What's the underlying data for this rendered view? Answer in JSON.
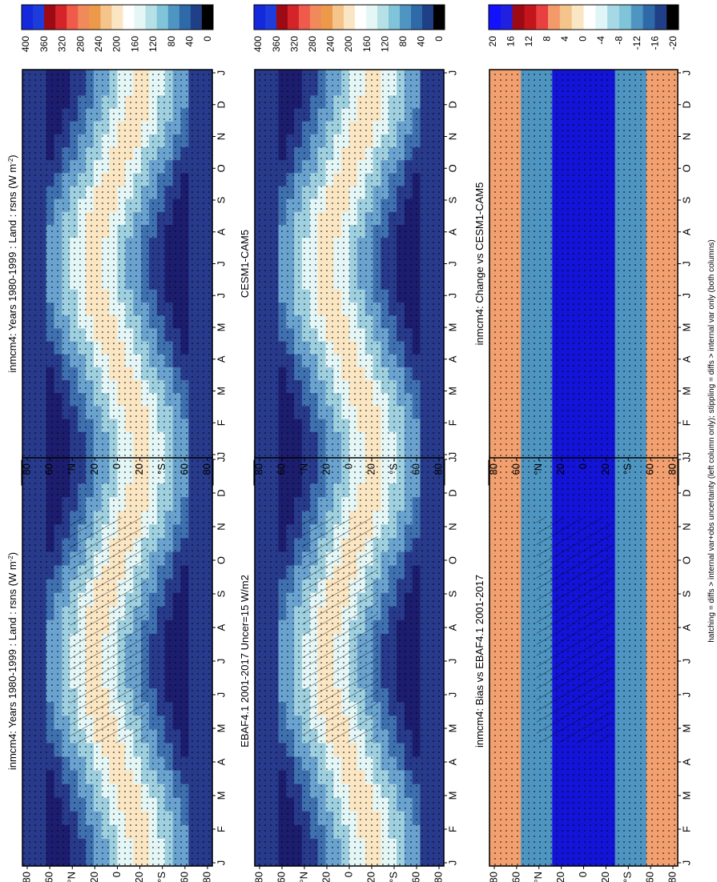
{
  "footnote": "hatching = diffs > internal var+obs uncertainty (left column only); stippling = diffs > internal var only (both columns)",
  "colors": {
    "frame": "#000000"
  },
  "chart_data": [
    {
      "type": "heatmap",
      "title": "inmcm4: Years 1980-1999 : Land : rsns (W m",
      "title_superscript": "-2",
      "title_suffix": ")",
      "x": [
        "J",
        "F",
        "M",
        "A",
        "M",
        "J",
        "J",
        "A",
        "S",
        "O",
        "N",
        "D",
        "J"
      ],
      "y_ticks": [
        "80",
        "60",
        "°N",
        "20",
        "0",
        "20",
        "°S",
        "60",
        "80"
      ],
      "colorbar_ticks": [
        "400",
        "360",
        "320",
        "280",
        "240",
        "200",
        "160",
        "120",
        "80",
        "40",
        "0"
      ],
      "zlim": [
        0,
        400
      ],
      "grid": false
    },
    {
      "type": "heatmap",
      "title": "inmcm4: Years 1980-1999 : Land : rsns (W m",
      "title_superscript": "-2",
      "title_suffix": ")",
      "x": [
        "J",
        "F",
        "M",
        "A",
        "M",
        "J",
        "J",
        "A",
        "S",
        "O",
        "N",
        "D",
        "J"
      ],
      "y_ticks": [
        "80",
        "60",
        "°N",
        "20",
        "0",
        "20",
        "°S",
        "60",
        "80"
      ],
      "colorbar_ticks": [
        "400",
        "360",
        "320",
        "280",
        "240",
        "200",
        "160",
        "120",
        "80",
        "40",
        "0"
      ],
      "zlim": [
        0,
        400
      ],
      "grid": false
    },
    {
      "type": "heatmap",
      "title": "EBAF4.1 2001-2017 Uncer=15 W/m2",
      "x": [
        "J",
        "F",
        "M",
        "A",
        "M",
        "J",
        "J",
        "A",
        "S",
        "O",
        "N",
        "D",
        "J"
      ],
      "y_ticks": [
        "80",
        "60",
        "°N",
        "20",
        "0",
        "20",
        "°S",
        "60",
        "80"
      ],
      "colorbar_ticks": [
        "400",
        "360",
        "320",
        "280",
        "240",
        "200",
        "160",
        "120",
        "80",
        "40",
        "0"
      ],
      "zlim": [
        0,
        400
      ],
      "grid": false
    },
    {
      "type": "heatmap",
      "title": "CESM1-CAM5",
      "x": [
        "J",
        "F",
        "M",
        "A",
        "M",
        "J",
        "J",
        "A",
        "S",
        "O",
        "N",
        "D",
        "J"
      ],
      "y_ticks": [
        "80",
        "60",
        "°N",
        "20",
        "0",
        "20",
        "°S",
        "60",
        "80"
      ],
      "colorbar_ticks": [
        "400",
        "360",
        "320",
        "280",
        "240",
        "200",
        "160",
        "120",
        "80",
        "40",
        "0"
      ],
      "zlim": [
        0,
        400
      ],
      "grid": false
    },
    {
      "type": "heatmap",
      "title": "inmcm4: Bias vs EBAF4.1 2001-2017",
      "x": [
        "J",
        "F",
        "M",
        "A",
        "M",
        "J",
        "J",
        "A",
        "S",
        "O",
        "N",
        "D",
        "J"
      ],
      "y_ticks": [
        "80",
        "60",
        "°N",
        "20",
        "0",
        "20",
        "°S",
        "60",
        "80"
      ],
      "colorbar_ticks": [
        "20",
        "16",
        "12",
        "8",
        "4",
        "0",
        "-4",
        "-8",
        "-12",
        "-16",
        "-20"
      ],
      "zlim": [
        -20,
        20
      ],
      "grid": false
    },
    {
      "type": "heatmap",
      "title": "inmcm4: Change vs CESM1-CAM5",
      "x": [
        "J",
        "F",
        "M",
        "A",
        "M",
        "J",
        "J",
        "A",
        "S",
        "O",
        "N",
        "D",
        "J"
      ],
      "y_ticks": [
        "80",
        "60",
        "°N",
        "20",
        "0",
        "20",
        "°S",
        "60",
        "80"
      ],
      "colorbar_ticks": [
        "20",
        "16",
        "12",
        "8",
        "4",
        "0",
        "-4",
        "-8",
        "-12",
        "-16",
        "-20"
      ],
      "zlim": [
        -20,
        20
      ],
      "grid": false
    }
  ]
}
